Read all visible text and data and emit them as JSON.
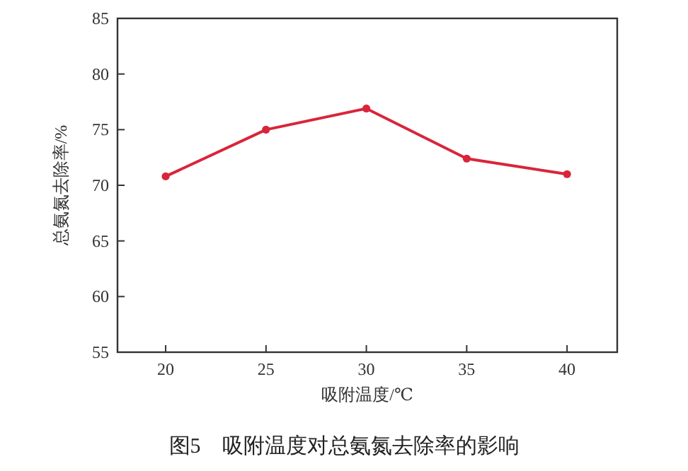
{
  "chart_data": {
    "type": "line",
    "xlabel": "吸附温度/℃",
    "ylabel": "总氨氮去除率/%",
    "x": [
      20,
      25,
      30,
      35,
      40
    ],
    "series": [
      {
        "color": "#d9253a",
        "values": [
          70.8,
          75.0,
          76.9,
          72.4,
          71.0
        ]
      }
    ],
    "xlim": [
      17.6,
      42.5
    ],
    "xticks": [
      20,
      25,
      30,
      35,
      40
    ],
    "ylim": [
      55,
      85
    ],
    "yticks": [
      55,
      60,
      65,
      70,
      75,
      80,
      85
    ],
    "marker": "circle",
    "line_style": "solid",
    "grid": false,
    "annotations": [
      "图5　吸附温度对总氨氮去除率的影响"
    ]
  }
}
